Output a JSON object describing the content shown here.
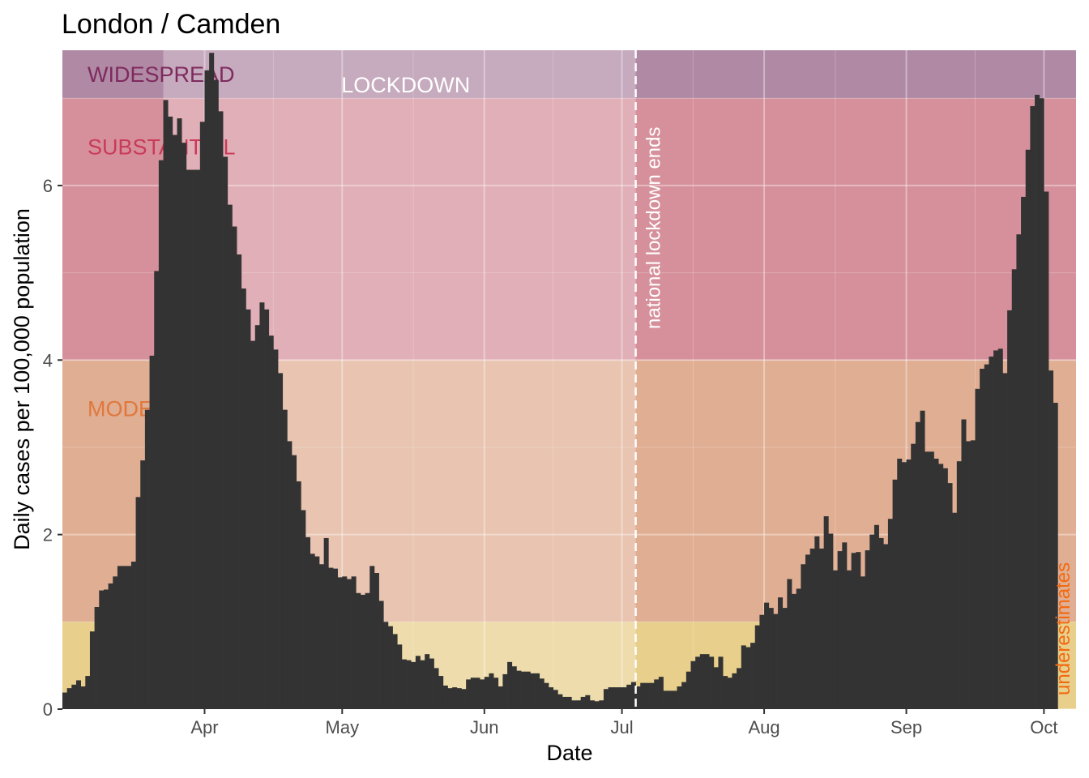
{
  "chart_data": {
    "type": "bar",
    "title": "London / Camden",
    "xlabel": "Date",
    "ylabel": "Daily cases per 100,000 population",
    "x_start": "2020-03-01",
    "x_end": "2020-10-07",
    "ylim": [
      0,
      7.55
    ],
    "y_ticks": [
      0,
      2,
      4,
      6
    ],
    "x_ticks": [
      {
        "date": "2020-04-01",
        "label": "Apr"
      },
      {
        "date": "2020-05-01",
        "label": "May"
      },
      {
        "date": "2020-06-01",
        "label": "Jun"
      },
      {
        "date": "2020-07-01",
        "label": "Jul"
      },
      {
        "date": "2020-08-01",
        "label": "Aug"
      },
      {
        "date": "2020-09-01",
        "label": "Sep"
      },
      {
        "date": "2020-10-01",
        "label": "Oct"
      }
    ],
    "grid": true,
    "bands": [
      {
        "label": "",
        "from": 0,
        "to": 1,
        "color": "#e8cf8c",
        "label_color": "#c9a227"
      },
      {
        "label": "MODERATE",
        "from": 1,
        "to": 4,
        "color": "#e0ae93",
        "label_color": "#e0783c"
      },
      {
        "label": "SUBSTANTIAL",
        "from": 4,
        "to": 7,
        "color": "#d6909b",
        "label_color": "#c93a58"
      },
      {
        "label": "WIDESPREAD",
        "from": 7,
        "to": 7.55,
        "color": "#b089a4",
        "label_color": "#7e2a5e"
      }
    ],
    "lockdown": {
      "label": "LOCKDOWN",
      "start": "2020-03-23",
      "end": "2020-07-04"
    },
    "events": [
      {
        "date": "2020-07-04",
        "label": "national lockdown ends"
      }
    ],
    "annotation": {
      "label": "underestimates",
      "color": "#f26a10"
    },
    "series": [
      {
        "values": [
          0.19,
          0.24,
          0.28,
          0.33,
          0.26,
          0.38,
          0.89,
          1.17,
          1.36,
          1.37,
          1.44,
          1.52,
          1.64,
          1.64,
          1.64,
          1.69,
          2.43,
          2.85,
          3.43,
          4.05,
          5.02,
          6.29,
          6.98,
          6.79,
          6.58,
          6.77,
          6.49,
          6.18,
          6.18,
          6.18,
          6.73,
          7.32,
          7.52,
          7.21,
          6.85,
          6.33,
          5.78,
          5.53,
          5.21,
          4.82,
          4.58,
          4.22,
          4.4,
          4.66,
          4.58,
          4.28,
          4.12,
          3.85,
          3.43,
          3.07,
          2.91,
          2.61,
          2.28,
          1.97,
          1.78,
          1.75,
          1.66,
          1.96,
          1.62,
          1.61,
          1.51,
          1.52,
          1.49,
          1.52,
          1.33,
          1.31,
          1.33,
          1.64,
          1.56,
          1.24,
          1.0,
          0.95,
          0.86,
          0.74,
          0.57,
          0.56,
          0.54,
          0.61,
          0.56,
          0.63,
          0.58,
          0.47,
          0.38,
          0.27,
          0.24,
          0.25,
          0.24,
          0.23,
          0.34,
          0.36,
          0.36,
          0.34,
          0.37,
          0.41,
          0.36,
          0.26,
          0.4,
          0.54,
          0.49,
          0.44,
          0.43,
          0.43,
          0.41,
          0.41,
          0.35,
          0.3,
          0.25,
          0.22,
          0.17,
          0.14,
          0.14,
          0.1,
          0.1,
          0.14,
          0.16,
          0.1,
          0.09,
          0.1,
          0.23,
          0.25,
          0.25,
          0.25,
          0.25,
          0.28,
          0.31,
          0.26,
          0.3,
          0.3,
          0.3,
          0.34,
          0.37,
          0.21,
          0.21,
          0.21,
          0.26,
          0.31,
          0.43,
          0.55,
          0.6,
          0.63,
          0.63,
          0.6,
          0.48,
          0.6,
          0.38,
          0.36,
          0.41,
          0.47,
          0.73,
          0.71,
          0.76,
          0.96,
          1.08,
          1.22,
          1.16,
          1.09,
          1.28,
          1.16,
          1.49,
          1.32,
          1.38,
          1.66,
          1.77,
          1.84,
          1.98,
          1.84,
          2.21,
          2.01,
          1.59,
          1.81,
          1.91,
          1.59,
          1.79,
          1.8,
          1.52,
          1.82,
          2.0,
          2.11,
          1.96,
          1.89,
          2.18,
          2.63,
          2.87,
          2.83,
          2.86,
          3.04,
          3.29,
          3.42,
          2.95,
          2.95,
          2.87,
          2.81,
          2.76,
          2.59,
          2.25,
          2.84,
          3.32,
          3.07,
          3.08,
          3.67,
          3.9,
          3.95,
          4.04,
          4.11,
          4.13,
          3.85,
          4.57,
          5.04,
          5.44,
          5.87,
          6.41,
          6.91,
          7.04,
          7.0,
          5.93,
          3.88,
          3.51
        ]
      }
    ]
  }
}
